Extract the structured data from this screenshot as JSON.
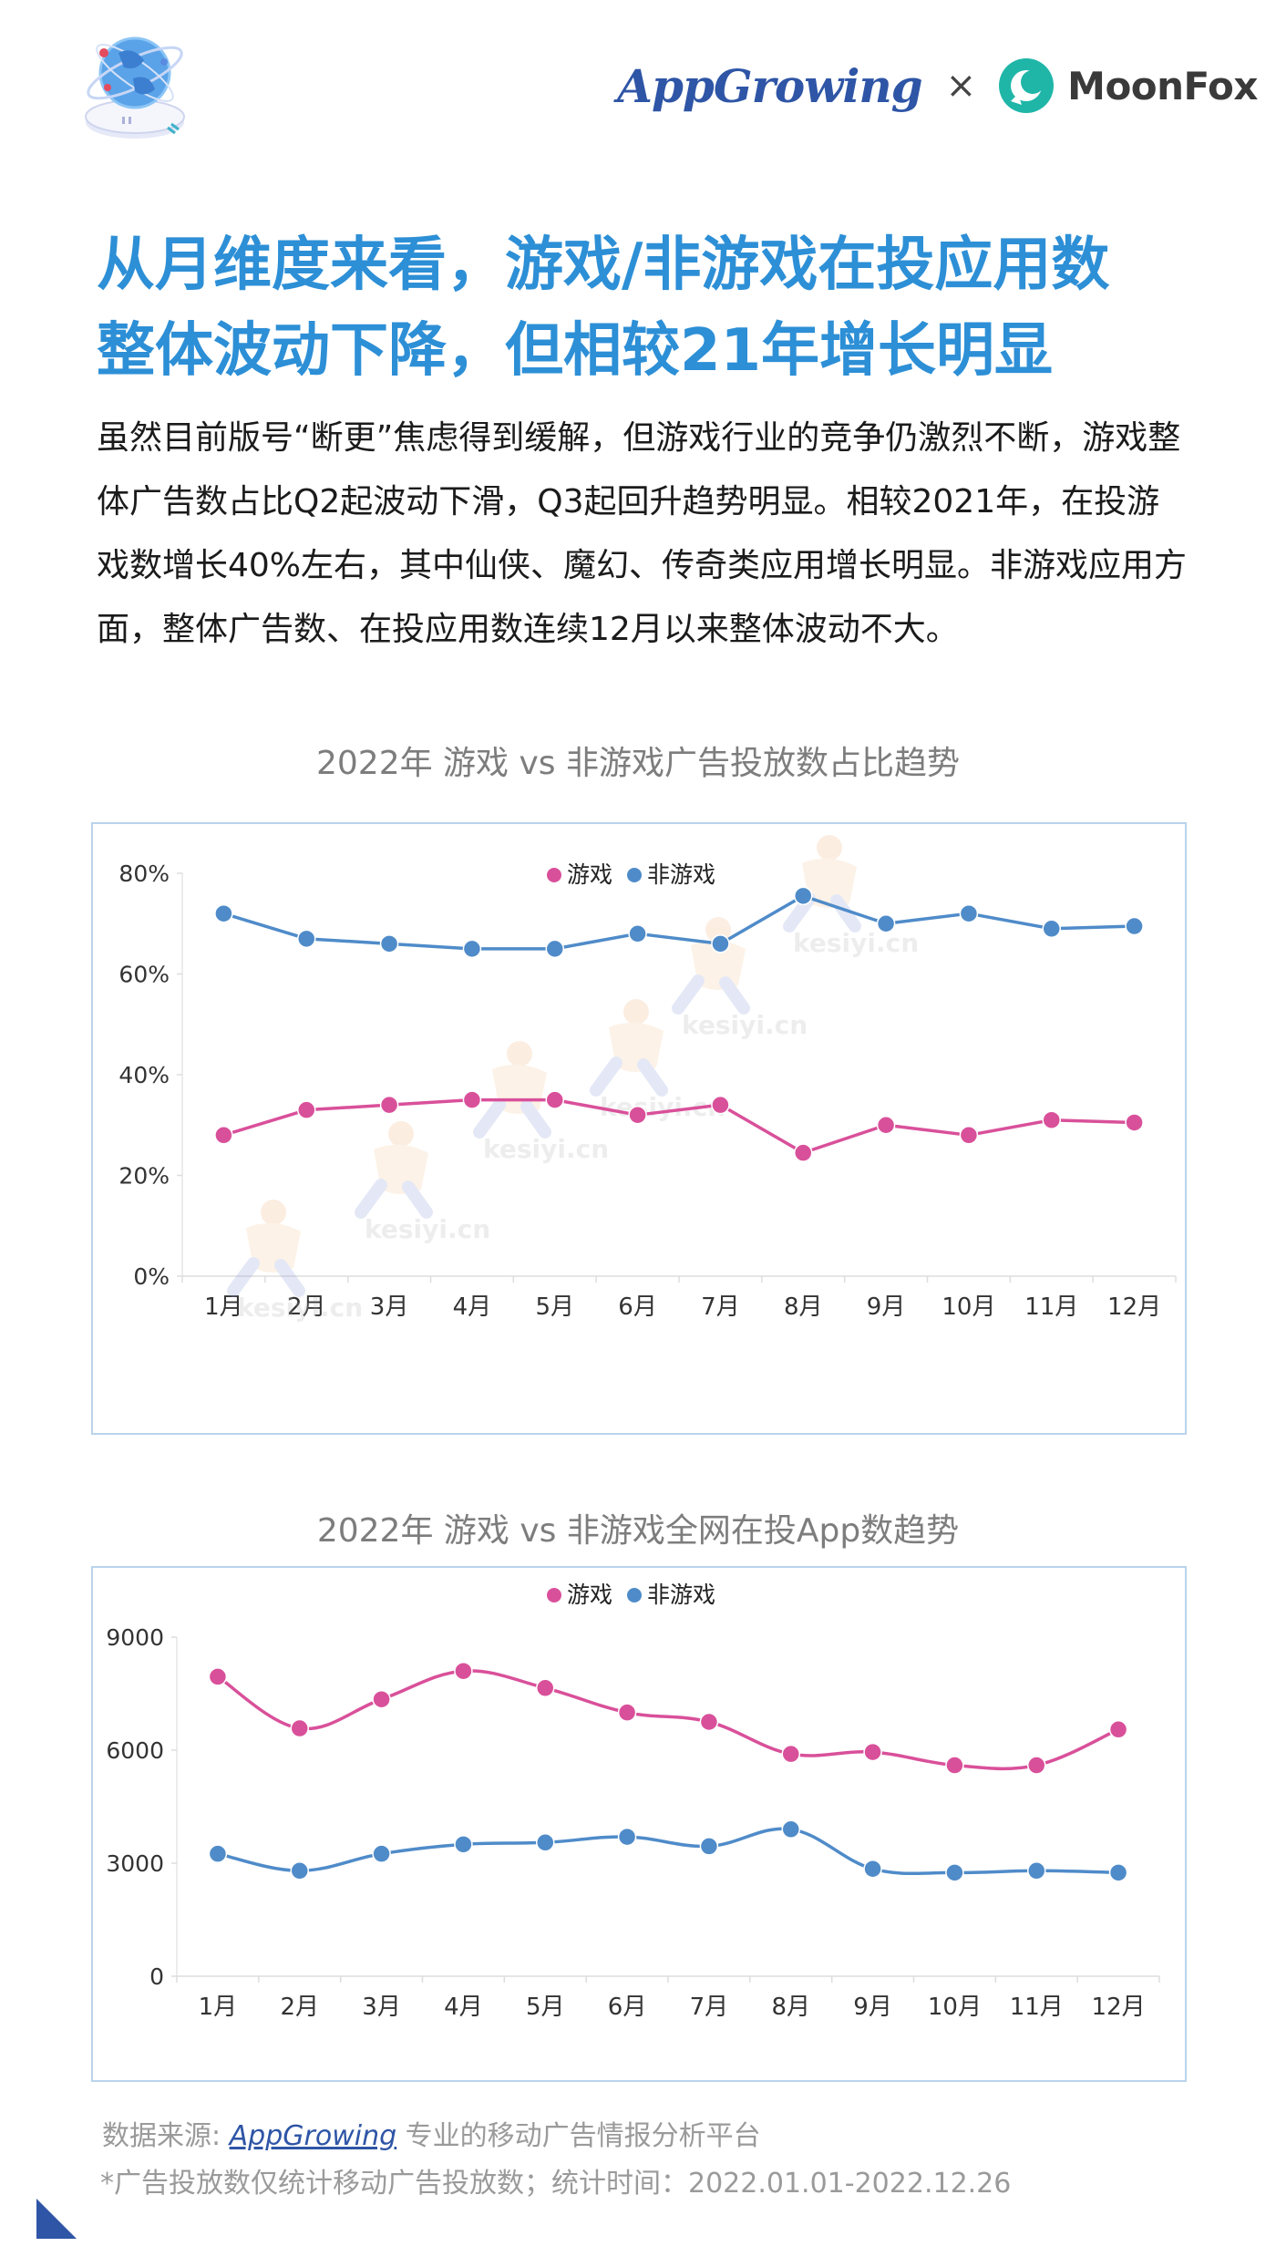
{
  "header": {
    "brand_appgrowing": "AppGrowing",
    "brand_separator": "×",
    "brand_moonfox": "MoonFox"
  },
  "title": {
    "line1": "从月维度来看，游戏/非游戏在投应用数",
    "line2": "整体波动下降，但相较21年增长明显"
  },
  "intro": "虽然目前版号“断更”焦虑得到缓解，但游戏行业的竞争仍激烈不断，游戏整体广告数占比Q2起波动下滑，Q3起回升趋势明显。相较2021年，在投游戏数增长40%左右，其中仙侠、魔幻、传奇类应用增长明显。非游戏应用方面，整体广告数、在投应用数连续12月以来整体波动不大。",
  "chart_data": [
    {
      "type": "line",
      "title": "2022年 游戏 vs 非游戏广告投放数占比趋势",
      "categories": [
        "1月",
        "2月",
        "3月",
        "4月",
        "5月",
        "6月",
        "7月",
        "8月",
        "9月",
        "10月",
        "11月",
        "12月"
      ],
      "series": [
        {
          "name": "游戏",
          "values": [
            28,
            33,
            34,
            35,
            35,
            32,
            34,
            24.5,
            30,
            28,
            31,
            30.5
          ]
        },
        {
          "name": "非游戏",
          "values": [
            72,
            67,
            66,
            65,
            65,
            68,
            66,
            75.5,
            70,
            72,
            69,
            69.5
          ]
        }
      ],
      "ylim": [
        0,
        80
      ],
      "yticks": [
        "0%",
        "20%",
        "40%",
        "60%",
        "80%"
      ],
      "ytick_values": [
        0,
        20,
        40,
        60,
        80
      ],
      "legend": "top-center",
      "smooth": false,
      "watermark": "kesiyi.cn"
    },
    {
      "type": "line",
      "title": "2022年 游戏 vs 非游戏全网在投App数趋势",
      "categories": [
        "1月",
        "2月",
        "3月",
        "4月",
        "5月",
        "6月",
        "7月",
        "8月",
        "9月",
        "10月",
        "11月",
        "12月"
      ],
      "series": [
        {
          "name": "游戏",
          "values": [
            7950,
            6580,
            7350,
            8100,
            7650,
            7000,
            6750,
            5900,
            5950,
            5600,
            5600,
            6550
          ]
        },
        {
          "name": "非游戏",
          "values": [
            3250,
            2800,
            3250,
            3500,
            3550,
            3700,
            3450,
            3900,
            2850,
            2750,
            2800,
            2750
          ]
        }
      ],
      "ylim": [
        0,
        9000
      ],
      "yticks": [
        "0",
        "3000",
        "6000",
        "9000"
      ],
      "ytick_values": [
        0,
        3000,
        6000,
        9000
      ],
      "legend": "top-center",
      "smooth": true
    }
  ],
  "colors": {
    "game": "#d9509a",
    "non_game": "#4f8bc9",
    "title": "#2d8fd6",
    "chart_title": "#7d7d7d",
    "axis_text": "#333333",
    "box_border": "#b9d3ec",
    "footer": "#9a9a9a"
  },
  "footer": {
    "source_prefix": "数据来源: ",
    "source_link": "AppGrowing",
    "source_suffix": " 专业的移动广告情报分析平台",
    "note": "*广告投放数仅统计移动广告投放数；统计时间：2022.01.01-2022.12.26"
  }
}
